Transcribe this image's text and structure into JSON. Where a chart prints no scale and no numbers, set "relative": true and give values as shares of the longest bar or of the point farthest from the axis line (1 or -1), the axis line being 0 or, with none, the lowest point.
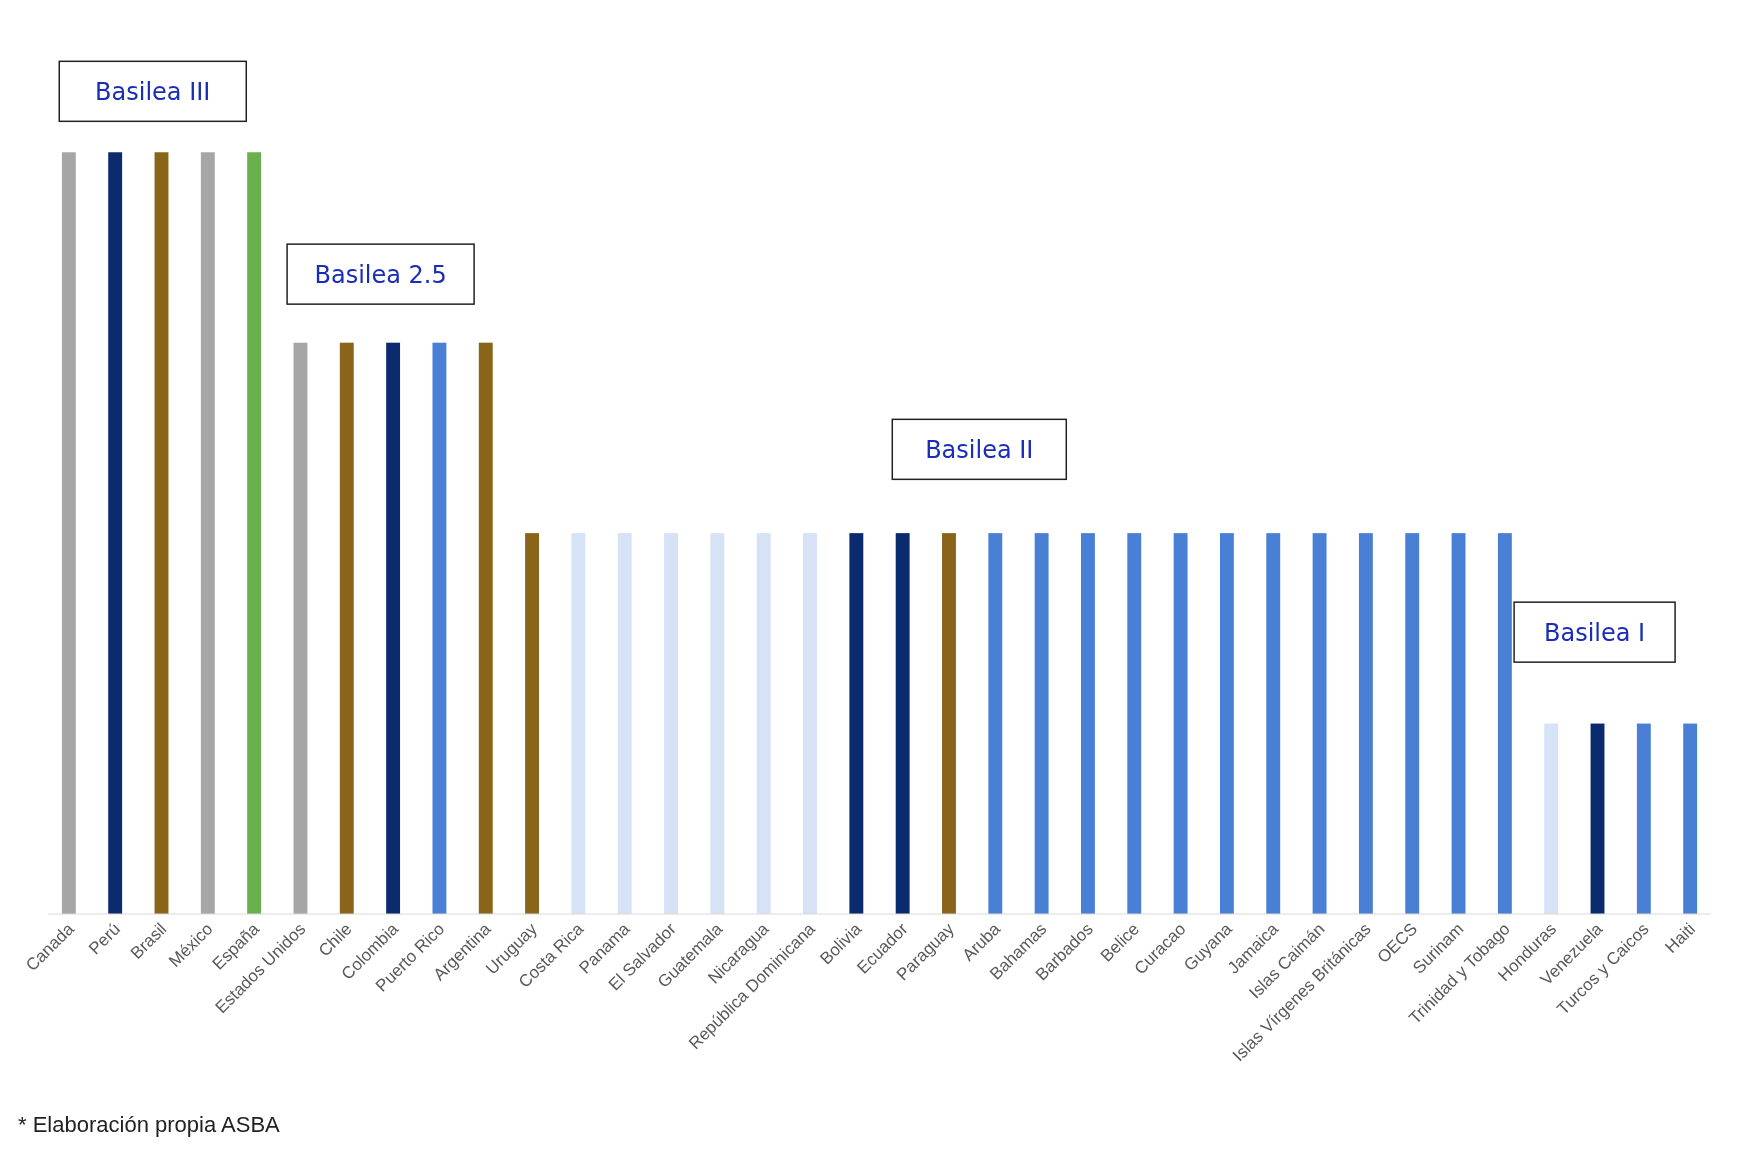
{
  "chart_data": {
    "type": "bar",
    "relative": true,
    "categories": [
      "Canada",
      "Perú",
      "Brasil",
      "México",
      "España",
      "Estados Unidos",
      "Chile",
      "Colombia",
      "Puerto Rico",
      "Argentina",
      "Uruguay",
      "Costa Rica",
      "Panama",
      "El Salvador",
      "Guatemala",
      "Nicaragua",
      "República Dominicana",
      "Bolivia",
      "Ecuador",
      "Paraguay",
      "Aruba",
      "Bahamas",
      "Barbados",
      "Belice",
      "Curacao",
      "Guyana",
      "Jamaica",
      "Islas Caimán",
      "Islas Vírgenes Británicas",
      "OECS",
      "Surinam",
      "Trinidad y Tobago",
      "Honduras",
      "Venezuela",
      "Turcos y Caicos",
      "Haiti"
    ],
    "values": [
      1,
      1,
      1,
      1,
      1,
      0.75,
      0.75,
      0.75,
      0.75,
      0.75,
      0.5,
      0.5,
      0.5,
      0.5,
      0.5,
      0.5,
      0.5,
      0.5,
      0.5,
      0.5,
      0.5,
      0.5,
      0.5,
      0.5,
      0.5,
      0.5,
      0.5,
      0.5,
      0.5,
      0.5,
      0.5,
      0.5,
      0.25,
      0.25,
      0.25,
      0.25
    ],
    "colors": [
      "#a6a6a6",
      "#0c2a6e",
      "#8a6418",
      "#a6a6a6",
      "#6ab04c",
      "#a6a6a6",
      "#8a6418",
      "#0c2a6e",
      "#4a7fd6",
      "#8a6418",
      "#8a6418",
      "#d6e2f5",
      "#d6e2f5",
      "#d6e2f5",
      "#d6e2f5",
      "#d6e2f5",
      "#d6e2f5",
      "#0c2a6e",
      "#0c2a6e",
      "#8a6418",
      "#4a7fd6",
      "#4a7fd6",
      "#4a7fd6",
      "#4a7fd6",
      "#4a7fd6",
      "#4a7fd6",
      "#4a7fd6",
      "#4a7fd6",
      "#4a7fd6",
      "#4a7fd6",
      "#4a7fd6",
      "#4a7fd6",
      "#d6e2f5",
      "#0c2a6e",
      "#4a7fd6",
      "#4a7fd6"
    ],
    "annotations": [
      "Basilea III",
      "Basilea 2.5",
      "Basilea II",
      "Basilea I",
      "* Elaboración propia ASBA"
    ]
  }
}
